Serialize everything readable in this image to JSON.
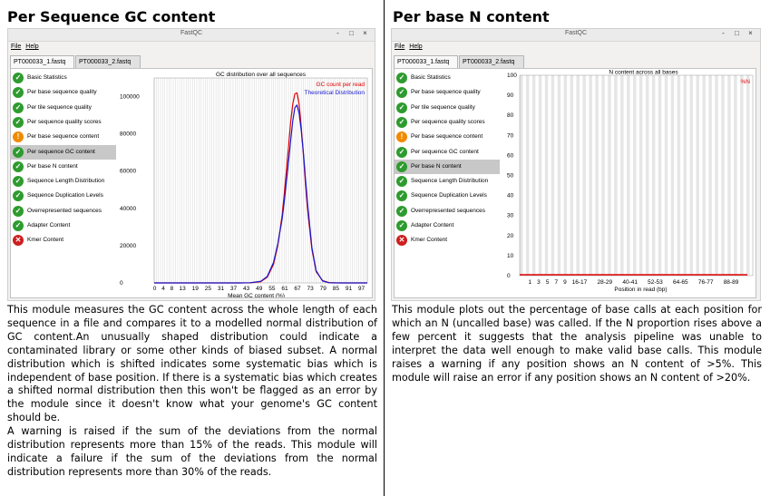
{
  "left": {
    "title": "Per Sequence GC content",
    "window": {
      "title": "FastQC",
      "buttons": [
        "-",
        "□",
        "×"
      ],
      "menu": [
        "File",
        "Help"
      ],
      "tabs": [
        "PT000033_1.fastq",
        "PT000033_2.fastq"
      ]
    },
    "modules": [
      {
        "label": "Basic Statistics",
        "status": "pass"
      },
      {
        "label": "Per base sequence quality",
        "status": "pass"
      },
      {
        "label": "Per tile sequence quality",
        "status": "pass"
      },
      {
        "label": "Per sequence quality scores",
        "status": "pass"
      },
      {
        "label": "Per base sequence content",
        "status": "warn"
      },
      {
        "label": "Per sequence GC content",
        "status": "pass",
        "selected": true
      },
      {
        "label": "Per base N content",
        "status": "pass"
      },
      {
        "label": "Sequence Length Distribution",
        "status": "pass"
      },
      {
        "label": "Sequence Duplication Levels",
        "status": "pass"
      },
      {
        "label": "Overrepresented sequences",
        "status": "pass"
      },
      {
        "label": "Adapter Content",
        "status": "pass"
      },
      {
        "label": "Kmer Content",
        "status": "fail"
      }
    ],
    "chart": {
      "title": "GC distribution over all sequences",
      "xlabel": "Mean GC content (%)",
      "yticks": [
        "0",
        "20000",
        "40000",
        "60000",
        "80000",
        "100000"
      ],
      "xticks": [
        "0",
        "4",
        "8",
        "13",
        "19",
        "25",
        "31",
        "37",
        "43",
        "49",
        "55",
        "61",
        "67",
        "73",
        "79",
        "85",
        "91",
        "97"
      ],
      "legend": [
        {
          "name": "GC count per read",
          "color": "#e00000"
        },
        {
          "name": "Theoretical Distribution",
          "color": "#1a1ad0"
        }
      ]
    },
    "description": [
      "This module measures the GC content across the whole length of each sequence in a file and compares it to a modelled normal distribution of GC content.An unusually shaped distribution could indicate a contaminated library or some other kinds of biased subset. A normal distribution which is shifted indicates some systematic bias which is independent of base position. If there is a systematic bias which creates a shifted normal distribution then this won't be flagged as an error by the module since it doesn't know what your genome's GC content should be.",
      "A warning is raised if the sum of the deviations from the normal distribution represents more than 15% of the reads. This module will indicate a failure if the sum of the deviations from the normal distribution represents more than 30% of the reads."
    ]
  },
  "right": {
    "title": "Per base N content",
    "window": {
      "title": "FastQC",
      "buttons": [
        "-",
        "□",
        "×"
      ],
      "menu": [
        "File",
        "Help"
      ],
      "tabs": [
        "PT000033_1.fastq",
        "PT000033_2.fastq"
      ]
    },
    "modules": [
      {
        "label": "Basic Statistics",
        "status": "pass"
      },
      {
        "label": "Per base sequence quality",
        "status": "pass"
      },
      {
        "label": "Per tile sequence quality",
        "status": "pass"
      },
      {
        "label": "Per sequence quality scores",
        "status": "pass"
      },
      {
        "label": "Per base sequence content",
        "status": "warn"
      },
      {
        "label": "Per sequence GC content",
        "status": "pass"
      },
      {
        "label": "Per base N content",
        "status": "pass",
        "selected": true
      },
      {
        "label": "Sequence Length Distribution",
        "status": "pass"
      },
      {
        "label": "Sequence Duplication Levels",
        "status": "pass"
      },
      {
        "label": "Overrepresented sequences",
        "status": "pass"
      },
      {
        "label": "Adapter Content",
        "status": "pass"
      },
      {
        "label": "Kmer Content",
        "status": "fail"
      }
    ],
    "chart": {
      "title": "N content across all bases",
      "xlabel": "Position in read (bp)",
      "yticks": [
        "0",
        "10",
        "20",
        "30",
        "40",
        "50",
        "60",
        "70",
        "80",
        "90",
        "100"
      ],
      "xticks": [
        "1",
        "3",
        "5",
        "7",
        "9",
        "16-17",
        "28-29",
        "40-41",
        "52-53",
        "64-65",
        "76-77",
        "88-89"
      ],
      "legend": [
        {
          "name": "%N",
          "color": "#e00000"
        }
      ]
    },
    "description": [
      "This module plots out the percentage of base calls at each position for which an N (uncalled base) was called. If the N proportion rises above a few percent it suggests that the analysis pipeline was unable to interpret the data well enough to make valid base calls. This module raises a warning if any position shows an N content of >5%. This module will raise an error if any position shows an N content of >20%."
    ]
  },
  "chart_data": [
    {
      "type": "line",
      "title": "GC distribution over all sequences",
      "xlabel": "Mean GC content (%)",
      "ylabel": "",
      "xlim": [
        0,
        100
      ],
      "ylim": [
        0,
        110000
      ],
      "x": [
        0,
        40,
        45,
        50,
        53,
        56,
        58,
        60,
        61,
        62,
        63,
        64,
        65,
        66,
        67,
        68,
        69,
        70,
        71,
        72,
        74,
        76,
        79,
        82,
        85,
        88,
        92,
        100
      ],
      "series": [
        {
          "name": "GC count per read",
          "color": "#e00000",
          "values": [
            0,
            0,
            50,
            700,
            3000,
            10000,
            20000,
            36000,
            47000,
            60000,
            73000,
            86000,
            96000,
            101500,
            102000,
            96000,
            84000,
            69000,
            53000,
            39000,
            18000,
            6000,
            1200,
            200,
            50,
            20,
            0,
            0
          ]
        },
        {
          "name": "Theoretical Distribution",
          "color": "#1a1ad0",
          "values": [
            0,
            0,
            100,
            900,
            3400,
            11000,
            21000,
            34000,
            43000,
            54000,
            65000,
            76000,
            87000,
            94000,
            95500,
            91000,
            82000,
            70000,
            56000,
            42000,
            19000,
            6500,
            1000,
            100,
            0,
            0,
            0,
            0
          ]
        }
      ],
      "grid": true,
      "legend_position": "top-right"
    },
    {
      "type": "line",
      "title": "N content across all bases",
      "xlabel": "Position in read (bp)",
      "ylabel": "",
      "ylim": [
        0,
        100
      ],
      "categories": [
        "1",
        "3",
        "5",
        "7",
        "9",
        "16-17",
        "28-29",
        "40-41",
        "52-53",
        "64-65",
        "76-77",
        "88-89"
      ],
      "series": [
        {
          "name": "%N",
          "color": "#e00000",
          "values": [
            0,
            0,
            0,
            0,
            0,
            0,
            0,
            0,
            0,
            0,
            0,
            0
          ]
        }
      ],
      "grid": true,
      "legend_position": "top-right"
    }
  ]
}
